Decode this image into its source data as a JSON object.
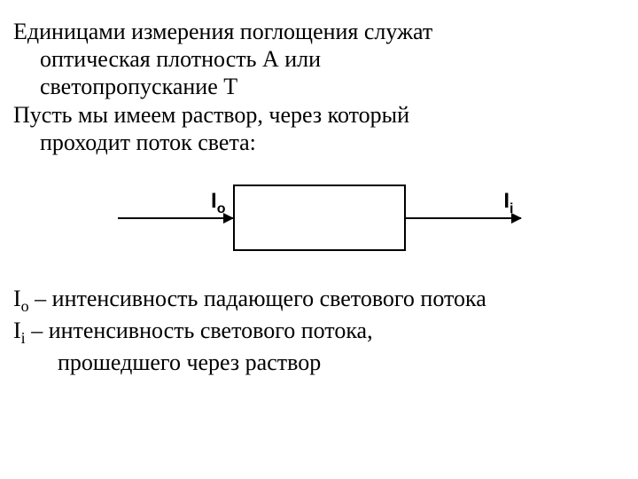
{
  "paragraph1": {
    "line1": "Единицами измерения поглощения служат",
    "line2": "оптическая плотность А или",
    "line3": "светопропускание Т",
    "line4": "Пусть мы имеем раствор, через который",
    "line5": "проходит поток света:"
  },
  "diagram": {
    "label_left_main": "I",
    "label_left_sub": "o",
    "label_right_main": "I",
    "label_right_sub": "i",
    "box_border_color": "#000000",
    "arrow_color": "#000000"
  },
  "definitions": {
    "def1_symbol_main": "I",
    "def1_symbol_sub": "o",
    "def1_text": " – интенсивность падающего светового потока",
    "def2_symbol_main": "I",
    "def2_symbol_sub": "i",
    "def2_text": " – интенсивность светового потока,",
    "def2_line2": "прошедшего через раствор"
  },
  "styling": {
    "background_color": "#ffffff",
    "text_color": "#000000",
    "body_fontsize": 26,
    "font_family": "Times New Roman"
  }
}
